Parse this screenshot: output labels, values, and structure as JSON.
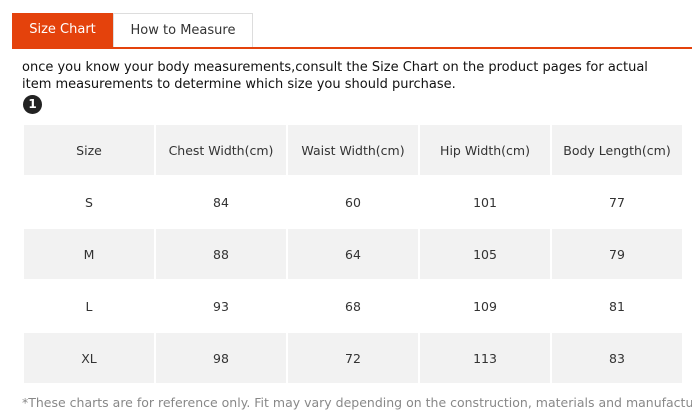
{
  "tabs": [
    "Size Chart",
    "How to Measure"
  ],
  "intro": "once you know your body measurements,consult the Size Chart on the product pages for actual item measurements to determine which size you should purchase.",
  "badge": "1",
  "table": {
    "header": [
      "Size",
      "Chest Width(cm)",
      "Waist Width(cm)",
      "Hip Width(cm)",
      "Body Length(cm)"
    ],
    "rows": [
      [
        "S",
        "84",
        "60",
        "101",
        "77"
      ],
      [
        "M",
        "88",
        "64",
        "105",
        "79"
      ],
      [
        "L",
        "93",
        "68",
        "109",
        "81"
      ],
      [
        "XL",
        "98",
        "72",
        "113",
        "83"
      ]
    ]
  },
  "note": "*These charts are for reference only. Fit may vary depending on the construction, materials and manufacturer."
}
